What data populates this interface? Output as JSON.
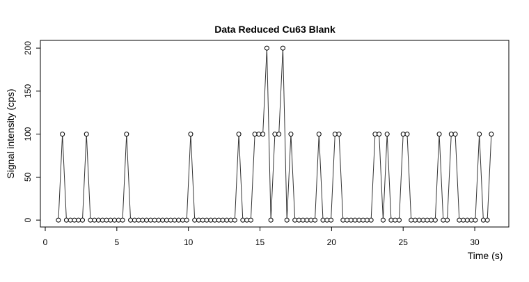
{
  "chart_data": {
    "type": "line",
    "title": "Data Reduced Cu63 Blank",
    "x_label": "Time (s)",
    "y_label": "Signal intensity (cps)",
    "x": [
      0.92,
      1.2,
      1.48,
      1.76,
      2.04,
      2.32,
      2.6,
      2.88,
      3.16,
      3.44,
      3.72,
      4,
      4.28,
      4.56,
      4.84,
      5.12,
      5.4,
      5.68,
      5.96,
      6.24,
      6.52,
      6.8,
      7.08,
      7.36,
      7.64,
      7.92,
      8.2,
      8.48,
      8.76,
      9.04,
      9.32,
      9.6,
      9.88,
      10.16,
      10.44,
      10.72,
      11,
      11.28,
      11.56,
      11.84,
      12.12,
      12.4,
      12.68,
      12.96,
      13.24,
      13.52,
      13.8,
      14.08,
      14.36,
      14.64,
      14.92,
      15.2,
      15.48,
      15.76,
      16.04,
      16.32,
      16.6,
      16.88,
      17.16,
      17.44,
      17.72,
      18,
      18.28,
      18.56,
      18.84,
      19.12,
      19.4,
      19.68,
      19.96,
      20.24,
      20.52,
      20.8,
      21.08,
      21.36,
      21.64,
      21.92,
      22.2,
      22.48,
      22.76,
      23.04,
      23.32,
      23.6,
      23.88,
      24.16,
      24.44,
      24.72,
      25,
      25.28,
      25.56,
      25.84,
      26.12,
      26.4,
      26.68,
      26.96,
      27.24,
      27.52,
      27.8,
      28.08,
      28.36,
      28.64,
      28.92,
      29.2,
      29.48,
      29.76,
      30.04,
      30.32,
      30.6,
      30.88,
      31.16
    ],
    "series": [
      {
        "color": "#333333",
        "values": [
          0,
          100,
          0,
          0,
          0,
          0,
          0,
          100,
          0,
          0,
          0,
          0,
          0,
          0,
          0,
          0,
          0,
          100,
          0,
          0,
          0,
          0,
          0,
          0,
          0,
          0,
          0,
          0,
          0,
          0,
          0,
          0,
          0,
          100,
          0,
          0,
          0,
          0,
          0,
          0,
          0,
          0,
          0,
          0,
          0,
          100,
          0,
          0,
          0,
          100,
          100,
          100,
          200,
          0,
          100,
          100,
          200,
          0,
          100,
          0,
          0,
          0,
          0,
          0,
          0,
          100,
          0,
          0,
          0,
          100,
          100,
          0,
          0,
          0,
          0,
          0,
          0,
          0,
          0,
          100,
          100,
          0,
          100,
          0,
          0,
          0,
          100,
          100,
          0,
          0,
          0,
          0,
          0,
          0,
          0,
          100,
          0,
          0,
          100,
          100,
          0,
          0,
          0,
          0,
          0,
          100,
          0,
          0,
          100
        ]
      }
    ],
    "xlim": [
      -0.34,
      32.38
    ],
    "ylim": [
      -8,
      209
    ],
    "xticks": [
      0,
      5,
      10,
      15,
      20,
      25,
      30
    ],
    "yticks": [
      0,
      50,
      100,
      150,
      200
    ],
    "grid": false
  }
}
